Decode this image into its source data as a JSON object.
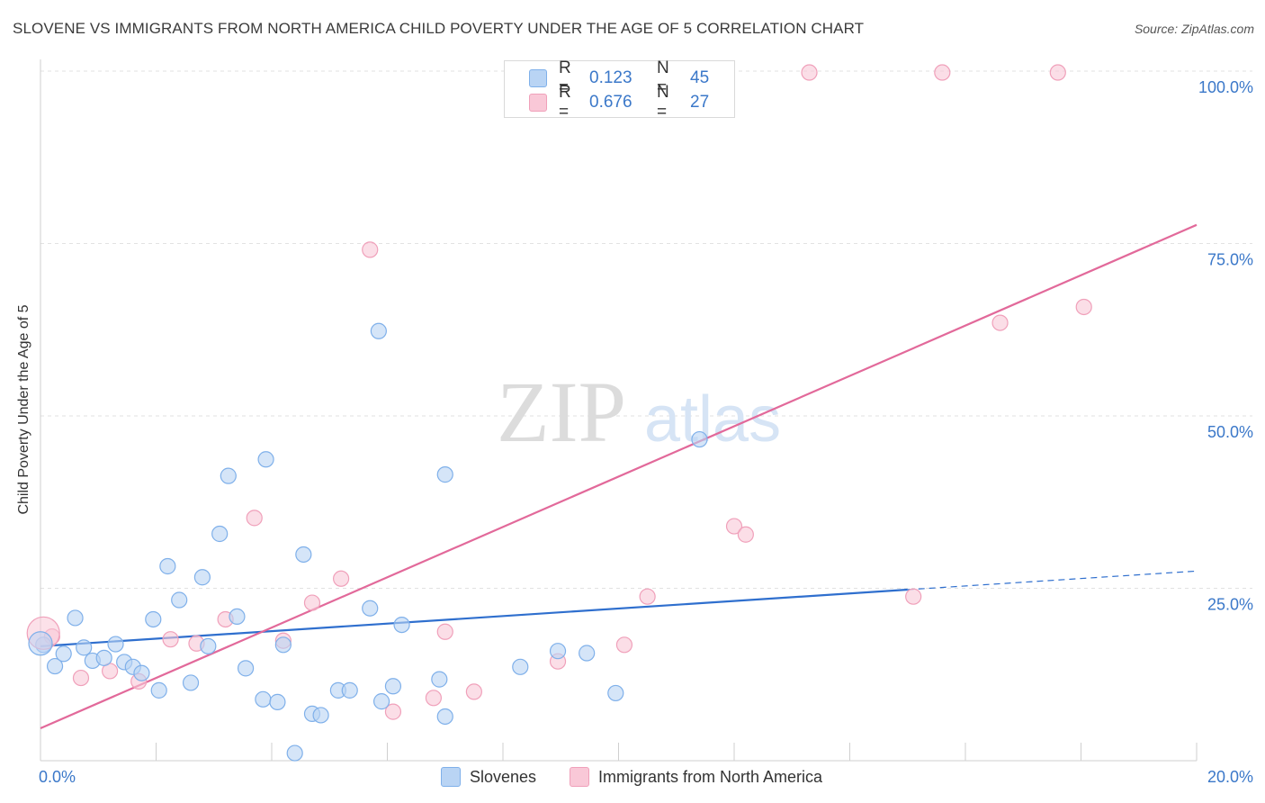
{
  "header": {
    "title": "SLOVENE VS IMMIGRANTS FROM NORTH AMERICA CHILD POVERTY UNDER THE AGE OF 5 CORRELATION CHART",
    "source": "Source: ZipAtlas.com"
  },
  "watermark": {
    "zip": "ZIP",
    "atlas": "atlas"
  },
  "colors": {
    "blue": "#7fb0ea",
    "blue_fill": "#b9d4f4",
    "blue_line": "#2f6fce",
    "pink": "#f0a0ba",
    "pink_fill": "#f9c8d7",
    "pink_line": "#e2699a",
    "tick_text": "#3b78c9"
  },
  "legend": {
    "rows": [
      {
        "r_label": "R =",
        "r_value": "0.123",
        "n_label": "N =",
        "n_value": "45"
      },
      {
        "r_label": "R =",
        "r_value": "0.676",
        "n_label": "N =",
        "n_value": "27"
      }
    ]
  },
  "bottom_legend": {
    "items": [
      "Slovenes",
      "Immigrants from North America"
    ]
  },
  "chart_data": {
    "type": "scatter",
    "title": "SLOVENE VS IMMIGRANTS FROM NORTH AMERICA CHILD POVERTY UNDER THE AGE OF 5 CORRELATION CHART",
    "xlabel": "",
    "ylabel": "Child Poverty Under the Age of 5",
    "xlim": [
      0,
      20
    ],
    "ylim": [
      0,
      100
    ],
    "x_ticks": [
      "0.0%",
      "20.0%"
    ],
    "y_ticks": [
      "25.0%",
      "50.0%",
      "75.0%",
      "100.0%"
    ],
    "y_tick_values": [
      25,
      50,
      75,
      100
    ],
    "grid": "horizontal dashed",
    "legend_position": "top-center",
    "series": [
      {
        "name": "Slovenes",
        "color": "#7fb0ea",
        "trend": {
          "x": [
            0,
            15
          ],
          "y": [
            16.6,
            24.8
          ],
          "dashed_extension_to": [
            20,
            27.5
          ]
        },
        "points": [
          [
            0.05,
            16.8
          ],
          [
            0.25,
            13.7
          ],
          [
            0.4,
            15.5
          ],
          [
            0.6,
            20.7
          ],
          [
            0.75,
            16.4
          ],
          [
            0.9,
            14.5
          ],
          [
            1.1,
            14.9
          ],
          [
            1.3,
            16.9
          ],
          [
            1.45,
            14.3
          ],
          [
            1.6,
            13.6
          ],
          [
            1.75,
            12.7
          ],
          [
            1.95,
            20.5
          ],
          [
            2.05,
            10.2
          ],
          [
            2.2,
            28.2
          ],
          [
            2.4,
            23.3
          ],
          [
            2.6,
            11.3
          ],
          [
            2.8,
            26.6
          ],
          [
            2.9,
            16.6
          ],
          [
            3.1,
            32.9
          ],
          [
            3.25,
            41.3
          ],
          [
            3.4,
            20.9
          ],
          [
            3.55,
            13.4
          ],
          [
            3.85,
            8.9
          ],
          [
            3.9,
            43.7
          ],
          [
            4.1,
            8.5
          ],
          [
            4.2,
            16.8
          ],
          [
            4.4,
            1.1
          ],
          [
            4.55,
            29.9
          ],
          [
            4.7,
            6.8
          ],
          [
            4.85,
            6.6
          ],
          [
            5.15,
            10.2
          ],
          [
            5.35,
            10.2
          ],
          [
            5.7,
            22.1
          ],
          [
            5.85,
            62.3
          ],
          [
            5.9,
            8.6
          ],
          [
            6.1,
            10.8
          ],
          [
            6.25,
            19.7
          ],
          [
            6.9,
            11.8
          ],
          [
            7.0,
            6.4
          ],
          [
            7.0,
            41.5
          ],
          [
            8.3,
            13.6
          ],
          [
            8.95,
            15.9
          ],
          [
            9.45,
            15.6
          ],
          [
            9.95,
            9.8
          ],
          [
            11.4,
            46.6
          ]
        ]
      },
      {
        "name": "Immigrants from North America",
        "color": "#f0a0ba",
        "trend": {
          "x": [
            0,
            20
          ],
          "y": [
            4.7,
            77.7
          ]
        },
        "points": [
          [
            0.2,
            18.0
          ],
          [
            0.7,
            12.0
          ],
          [
            1.2,
            13.0
          ],
          [
            1.7,
            11.5
          ],
          [
            2.25,
            17.6
          ],
          [
            2.7,
            17.0
          ],
          [
            3.2,
            20.5
          ],
          [
            3.7,
            35.2
          ],
          [
            4.2,
            17.4
          ],
          [
            4.7,
            22.9
          ],
          [
            5.2,
            26.4
          ],
          [
            5.7,
            74.1
          ],
          [
            6.1,
            7.1
          ],
          [
            6.8,
            9.1
          ],
          [
            7.0,
            18.7
          ],
          [
            7.5,
            10.0
          ],
          [
            8.95,
            14.4
          ],
          [
            10.1,
            16.8
          ],
          [
            10.5,
            23.8
          ],
          [
            12.0,
            34.0
          ],
          [
            12.2,
            32.8
          ],
          [
            13.3,
            99.8
          ],
          [
            15.1,
            23.8
          ],
          [
            15.6,
            99.8
          ],
          [
            16.6,
            63.5
          ],
          [
            17.6,
            99.8
          ],
          [
            18.05,
            65.8
          ]
        ]
      }
    ]
  }
}
